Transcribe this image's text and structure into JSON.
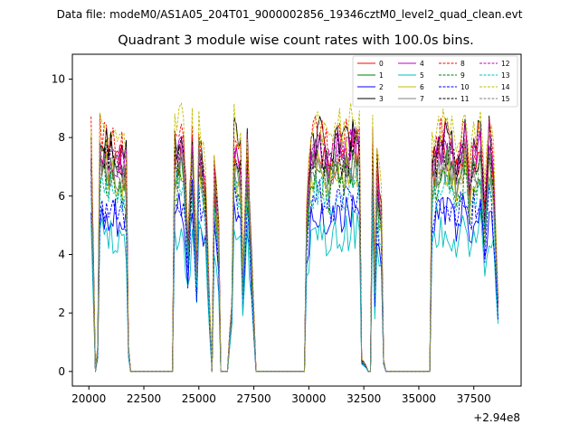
{
  "suptitle": "Data file: modeM0/AS1A05_204T01_9000002856_19346cztM0_level2_quad_clean.evt",
  "chart_data": {
    "type": "line",
    "title": "Quadrant 3 module wise count rates with 100.0s bins.",
    "xlabel": "",
    "ylabel": "",
    "x_offset_label": "+2.94e8",
    "xlim": [
      19250,
      39650
    ],
    "ylim": [
      -0.5,
      10.85
    ],
    "x_ticks": [
      20000,
      22500,
      25000,
      27500,
      30000,
      32500,
      35000,
      37500
    ],
    "x_tick_labels": [
      "20000",
      "22500",
      "25000",
      "27500",
      "30000",
      "32500",
      "35000",
      "37500"
    ],
    "y_ticks": [
      0,
      2,
      4,
      6,
      8,
      10
    ],
    "y_tick_labels": [
      "0",
      "2",
      "4",
      "6",
      "8",
      "10"
    ],
    "legend_position": "top-right",
    "series": [
      {
        "name": "0",
        "color": "#ff0000",
        "dash": "solid",
        "level": 7.4
      },
      {
        "name": "1",
        "color": "#008000",
        "dash": "solid",
        "level": 7.2
      },
      {
        "name": "2",
        "color": "#0000ff",
        "dash": "solid",
        "level": 5.6
      },
      {
        "name": "3",
        "color": "#000000",
        "dash": "solid",
        "level": 8.1
      },
      {
        "name": "4",
        "color": "#bf00bf",
        "dash": "solid",
        "level": 7.7
      },
      {
        "name": "5",
        "color": "#00bfbf",
        "dash": "solid",
        "level": 4.9
      },
      {
        "name": "6",
        "color": "#bfbf00",
        "dash": "solid",
        "level": 7.0
      },
      {
        "name": "7",
        "color": "#808080",
        "dash": "solid",
        "level": 7.1
      },
      {
        "name": "8",
        "color": "#ff0000",
        "dash": "dashed",
        "level": 8.3
      },
      {
        "name": "9",
        "color": "#008000",
        "dash": "dashed",
        "level": 6.7
      },
      {
        "name": "10",
        "color": "#0000ff",
        "dash": "dashed",
        "level": 5.9
      },
      {
        "name": "11",
        "color": "#000000",
        "dash": "dashed",
        "level": 7.6
      },
      {
        "name": "12",
        "color": "#bf00bf",
        "dash": "dashed",
        "level": 7.9
      },
      {
        "name": "13",
        "color": "#00bfbf",
        "dash": "dashed",
        "level": 6.4
      },
      {
        "name": "14",
        "color": "#bfbf00",
        "dash": "dashed",
        "level": 8.6
      },
      {
        "name": "15",
        "color": "#808080",
        "dash": "dashed",
        "level": 7.3
      }
    ],
    "profile_points": [
      [
        20100,
        1.0
      ],
      [
        20200,
        0.5
      ],
      [
        20300,
        0.0
      ],
      [
        20400,
        0.1
      ],
      [
        20500,
        1.0
      ],
      [
        20800,
        0.97
      ],
      [
        21100,
        0.95
      ],
      [
        21400,
        0.93
      ],
      [
        21700,
        0.9
      ],
      [
        21800,
        0.1
      ],
      [
        21900,
        0.0
      ],
      [
        23800,
        0.0
      ],
      [
        23900,
        0.95
      ],
      [
        24300,
        1.0
      ],
      [
        24500,
        0.55
      ],
      [
        24700,
        1.0
      ],
      [
        24900,
        0.45
      ],
      [
        25000,
        1.0
      ],
      [
        25300,
        0.8
      ],
      [
        25500,
        0.25
      ],
      [
        25600,
        0.0
      ],
      [
        25700,
        0.85
      ],
      [
        25900,
        0.6
      ],
      [
        26000,
        0.0
      ],
      [
        26300,
        0.0
      ],
      [
        26500,
        0.3
      ],
      [
        26600,
        1.0
      ],
      [
        26900,
        0.9
      ],
      [
        27000,
        0.4
      ],
      [
        27200,
        0.95
      ],
      [
        27300,
        0.7
      ],
      [
        27600,
        0.0
      ],
      [
        29800,
        0.0
      ],
      [
        29900,
        0.65
      ],
      [
        30100,
        0.95
      ],
      [
        30500,
        1.0
      ],
      [
        30900,
        0.9
      ],
      [
        31300,
        1.0
      ],
      [
        31600,
        0.95
      ],
      [
        32000,
        1.0
      ],
      [
        32300,
        1.0
      ],
      [
        32400,
        0.05
      ],
      [
        32800,
        0.0
      ],
      [
        32900,
        1.0
      ],
      [
        33000,
        0.4
      ],
      [
        33100,
        0.85
      ],
      [
        33300,
        0.7
      ],
      [
        33400,
        0.05
      ],
      [
        33500,
        0.0
      ],
      [
        35500,
        0.0
      ],
      [
        35600,
        0.9
      ],
      [
        35900,
        0.97
      ],
      [
        36300,
        1.0
      ],
      [
        36700,
        0.9
      ],
      [
        37100,
        1.0
      ],
      [
        37300,
        0.8
      ],
      [
        37500,
        0.95
      ],
      [
        37800,
        1.0
      ],
      [
        38000,
        0.7
      ],
      [
        38200,
        1.0
      ],
      [
        38400,
        0.85
      ],
      [
        38600,
        0.3
      ]
    ]
  }
}
